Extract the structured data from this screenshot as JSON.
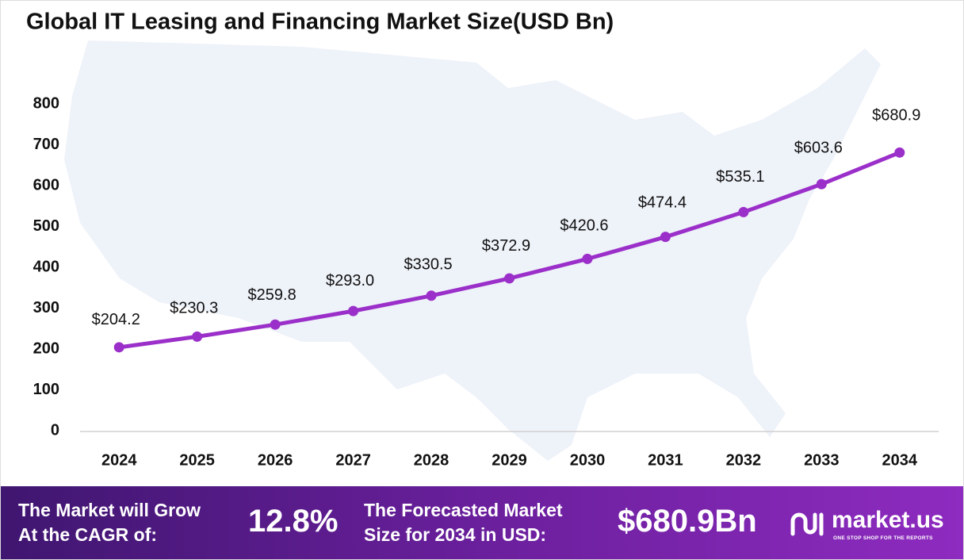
{
  "chart_data": {
    "type": "line",
    "title": "Global IT Leasing and Financing Market Size(USD Bn)",
    "categories": [
      "2024",
      "2025",
      "2026",
      "2027",
      "2028",
      "2029",
      "2030",
      "2031",
      "2032",
      "2033",
      "2034"
    ],
    "values": [
      204.2,
      230.3,
      259.8,
      293.0,
      330.5,
      372.9,
      420.6,
      474.4,
      535.1,
      603.6,
      680.9
    ],
    "value_labels": [
      "$204.2",
      "$230.3",
      "$259.8",
      "$293.0",
      "$330.5",
      "$372.9",
      "$420.6",
      "$474.4",
      "$535.1",
      "$603.6",
      "$680.9"
    ],
    "color": "#9b2fc9",
    "ylim": [
      0,
      800
    ],
    "yticks": [
      0,
      100,
      200,
      300,
      400,
      500,
      600,
      700,
      800
    ],
    "grid": false
  },
  "footer": {
    "cagr_label": [
      "The Market will Grow",
      "At the CAGR of:"
    ],
    "cagr_value": "12.8%",
    "forecast_label": [
      "The Forecasted Market",
      "Size for 2034 in USD:"
    ],
    "forecast_value": "$680.9Bn",
    "logo": "market.us",
    "logo_tagline": "ONE STOP SHOP FOR THE REPORTS"
  }
}
